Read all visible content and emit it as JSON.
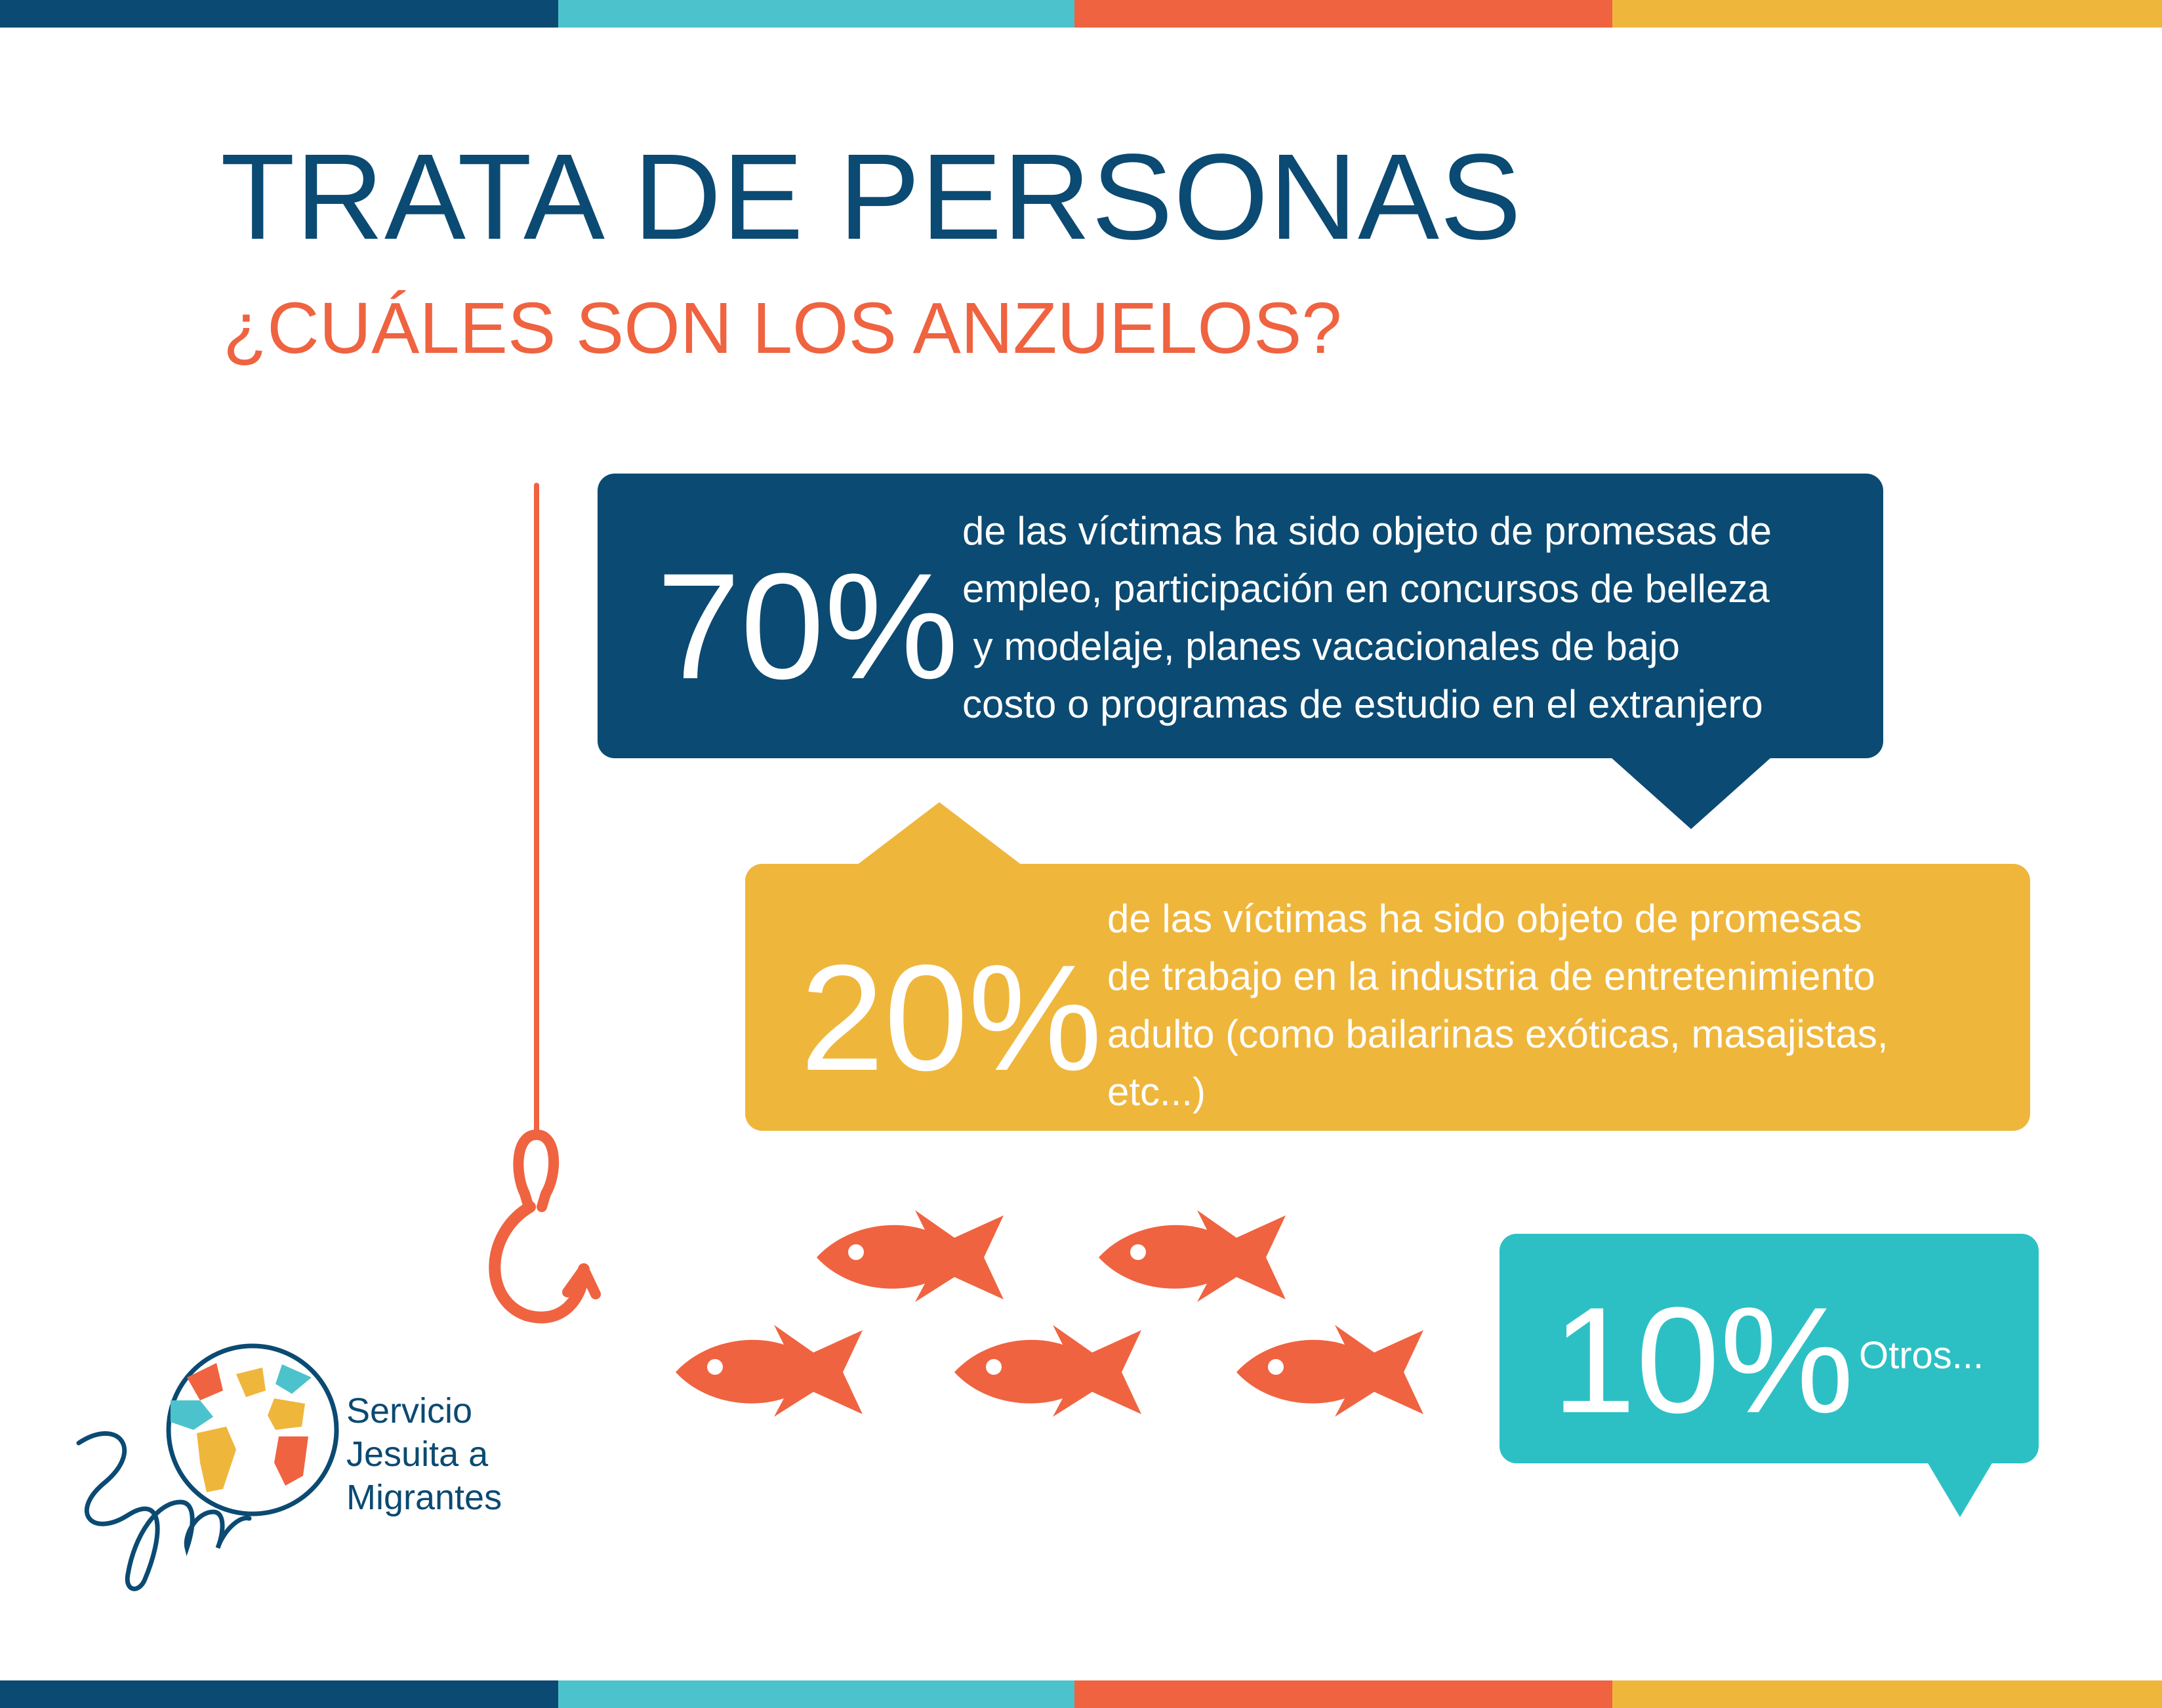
{
  "title": "TRATA DE PERSONAS",
  "subtitle": "¿CUÁLES SON LOS ANZUELOS?",
  "colors": {
    "navy": "#0b4a72",
    "orange": "#ef6340",
    "yellow": "#efb63c",
    "teal": "#2cc0c5",
    "light_teal": "#4cc3cc"
  },
  "stats": [
    {
      "percent": "70%",
      "lines": [
        "de las víctimas ha sido objeto de promesas de",
        "empleo, participación en concursos de belleza",
        " y modelaje, planes vacacionales de bajo",
        "costo o programas de estudio en el extranjero"
      ]
    },
    {
      "percent": "20%",
      "lines": [
        "de las víctimas ha sido objeto de promesas",
        "de trabajo en la industria de entretenimiento",
        "adulto (como bailarinas exóticas, masajistas,",
        "etc...)"
      ]
    },
    {
      "percent": "10%",
      "lines": [
        "Otros..."
      ]
    }
  ],
  "icons": [
    "fishing-hook-icon",
    "fish-icon",
    "sjm-globe-logo"
  ],
  "logo": {
    "lines": [
      "Servicio",
      "Jesuita a",
      "Migrantes"
    ]
  }
}
